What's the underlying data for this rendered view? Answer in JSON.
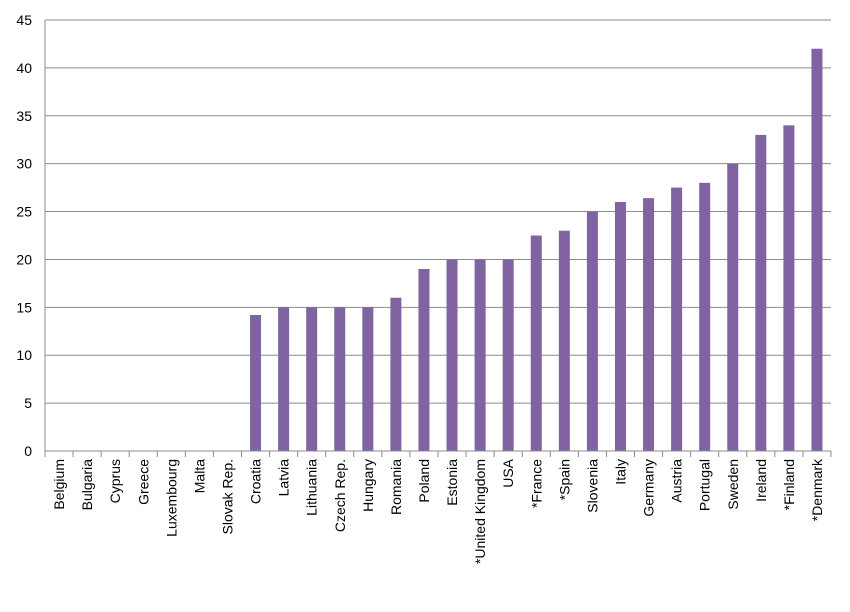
{
  "chart_data": {
    "type": "bar",
    "title": "",
    "xlabel": "",
    "ylabel": "",
    "ylim": [
      0,
      45
    ],
    "yticks": [
      0,
      5,
      10,
      15,
      20,
      25,
      30,
      35,
      40,
      45
    ],
    "grid": true,
    "legend": "none",
    "bar_color": "#8064a2",
    "categories": [
      "Belgium",
      "Bulgaria",
      "Cyprus",
      "Greece",
      "Luxembourg",
      "Malta",
      "Slovak Rep.",
      "Croatia",
      "Latvia",
      "Lithuania",
      "Czech Rep.",
      "Hungary",
      "Romania",
      "Poland",
      "Estonia",
      "*United Kingdom",
      "USA",
      "*France",
      "*Spain",
      "Slovenia",
      "Italy",
      "Germany",
      "Austria",
      "Portugal",
      "Sweden",
      "Ireland",
      "*Finland",
      "*Denmark"
    ],
    "values": [
      0,
      0,
      0,
      0,
      0,
      0,
      0,
      14.2,
      15,
      15,
      15,
      15,
      16,
      19,
      20,
      20,
      20,
      22.5,
      23,
      25,
      26,
      26.4,
      27.5,
      28,
      30,
      33,
      34,
      42
    ]
  }
}
